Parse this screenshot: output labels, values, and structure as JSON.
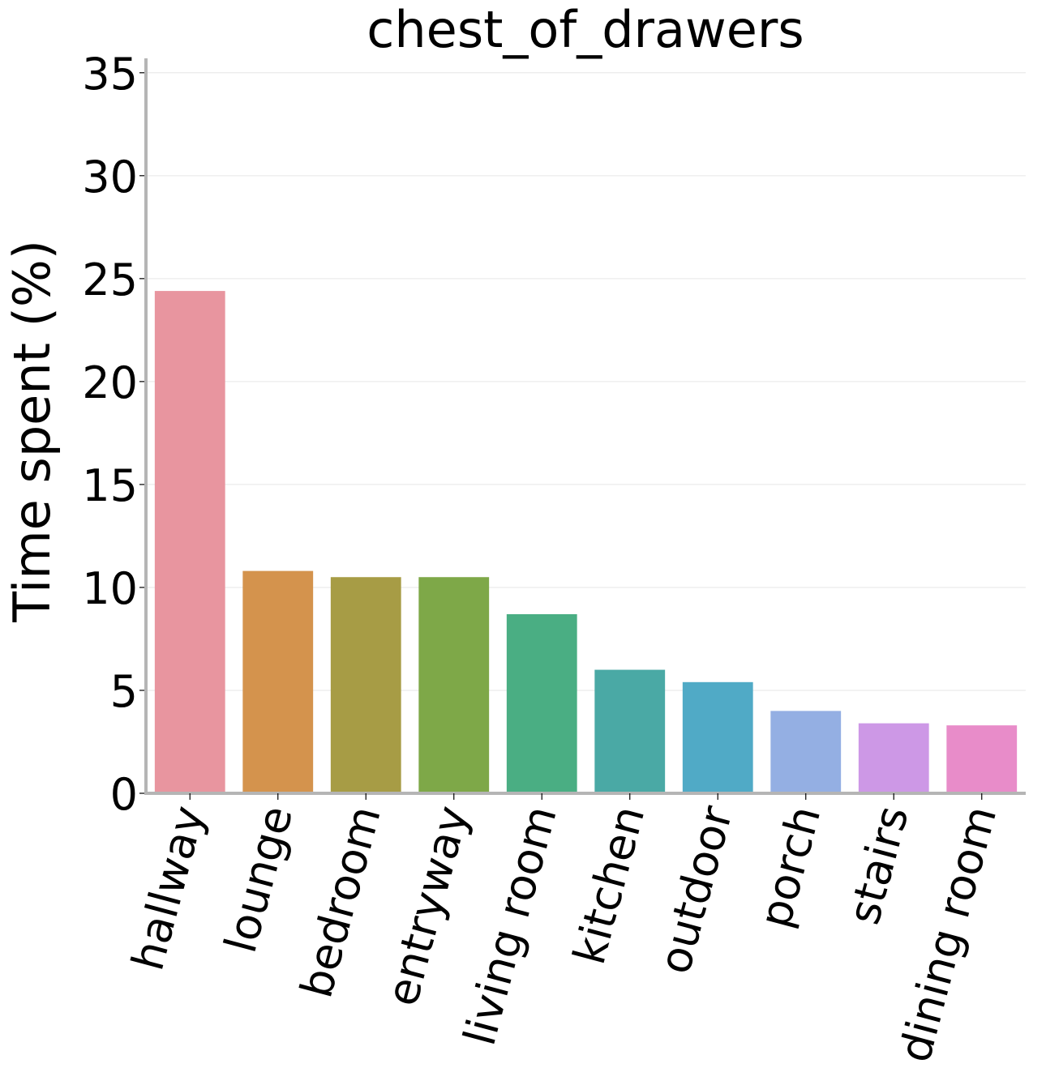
{
  "chart_data": {
    "type": "bar",
    "title": "chest_of_drawers",
    "xlabel": "",
    "ylabel": "Time spent (%)",
    "ylim": [
      0,
      35.7
    ],
    "yticks": [
      0,
      5,
      10,
      15,
      20,
      25,
      30,
      35
    ],
    "grid": "horizontal",
    "legend": "none",
    "categories": [
      "hallway",
      "lounge",
      "bedroom",
      "entryway",
      "living room",
      "kitchen",
      "outdoor",
      "porch",
      "stairs",
      "dining room"
    ],
    "values": [
      24.4,
      10.8,
      10.5,
      10.5,
      8.7,
      6.0,
      5.4,
      4.0,
      3.4,
      3.3
    ],
    "colors": [
      "#e8959f",
      "#d4934d",
      "#a79c45",
      "#7ea848",
      "#4aae83",
      "#4aa9a5",
      "#50aac6",
      "#94afe3",
      "#cd98e6",
      "#e88cc9"
    ]
  }
}
